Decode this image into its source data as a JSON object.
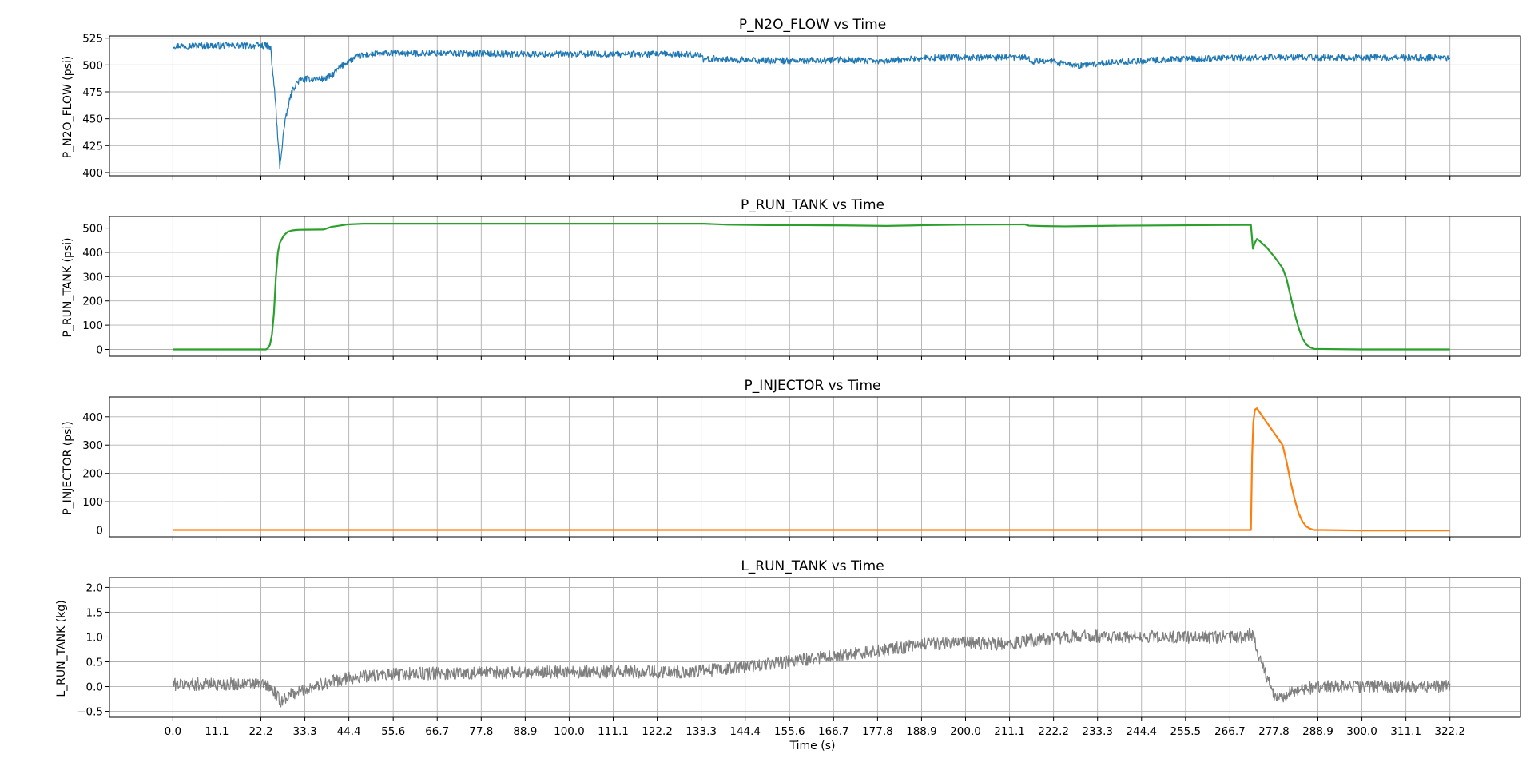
{
  "figure": {
    "xlabel": "Time (s)",
    "x_ticks": [
      "0.0",
      "11.1",
      "22.2",
      "33.3",
      "44.4",
      "55.6",
      "66.7",
      "77.8",
      "88.9",
      "100.0",
      "111.1",
      "122.2",
      "133.3",
      "144.4",
      "155.6",
      "166.7",
      "177.8",
      "188.9",
      "200.0",
      "211.1",
      "222.2",
      "233.3",
      "244.4",
      "255.5",
      "266.7",
      "277.8",
      "288.9",
      "300.0",
      "311.1",
      "322.2"
    ]
  },
  "chart_data": [
    {
      "type": "line",
      "title": "P_N2O_FLOW vs Time",
      "ylabel": "P_N2O_FLOW (psi)",
      "xlim": [
        -16,
        340
      ],
      "ylim": [
        397,
        527
      ],
      "y_ticks": [
        400,
        425,
        450,
        475,
        500,
        525
      ],
      "grid": true,
      "color": "#1f77b4",
      "noise": 3,
      "series": [
        {
          "x": [
            0,
            24,
            24.7,
            25,
            25.3,
            25.6,
            26,
            26.4,
            27,
            28,
            29,
            30,
            31,
            32,
            34,
            36,
            38,
            40,
            42,
            44,
            46,
            48,
            50,
            55,
            60,
            70,
            90,
            110,
            133,
            134,
            136,
            140,
            150,
            160,
            170,
            178,
            186,
            195,
            205,
            215,
            217,
            219,
            225,
            228,
            230,
            235,
            250,
            270,
            300,
            322.2
          ],
          "y": [
            518,
            518,
            515,
            500,
            490,
            478,
            460,
            435,
            405,
            440,
            460,
            475,
            482,
            486,
            487,
            487,
            487,
            490,
            497,
            503,
            507,
            509,
            510,
            511,
            511,
            511,
            510,
            510,
            510,
            504,
            506,
            505,
            504,
            504,
            505,
            503,
            506,
            507,
            507,
            507,
            503,
            505,
            501,
            499,
            500,
            502,
            505,
            507,
            507,
            507
          ]
        }
      ]
    },
    {
      "type": "line",
      "title": "P_RUN_TANK vs Time",
      "ylabel": "P_RUN_TANK (psi)",
      "xlim": [
        -16,
        340
      ],
      "ylim": [
        -28,
        548
      ],
      "y_ticks": [
        0,
        100,
        200,
        300,
        400,
        500
      ],
      "grid": true,
      "color": "#2ca02c",
      "noise": 0,
      "series": [
        {
          "x": [
            0,
            23.5,
            24,
            24.5,
            25,
            25.5,
            26,
            26.5,
            27,
            28,
            29,
            30,
            31,
            32,
            38,
            40,
            44,
            48,
            134,
            140,
            150,
            160,
            170,
            180,
            190,
            200,
            215,
            216,
            220,
            225,
            230,
            240,
            270,
            272,
            272.5,
            273,
            273.5,
            274,
            276,
            278,
            280,
            281,
            282,
            283,
            284,
            285,
            286,
            287,
            288,
            300,
            322.2
          ],
          "y": [
            0,
            0,
            5,
            20,
            60,
            150,
            300,
            400,
            440,
            470,
            485,
            490,
            492,
            493,
            494,
            505,
            515,
            518,
            518,
            514,
            512,
            512,
            511,
            509,
            512,
            514,
            515,
            510,
            508,
            507,
            508,
            510,
            513,
            513,
            415,
            440,
            455,
            450,
            420,
            380,
            335,
            290,
            220,
            150,
            90,
            45,
            20,
            8,
            2,
            0,
            0
          ]
        }
      ]
    },
    {
      "type": "line",
      "title": "P_INJECTOR vs Time",
      "ylabel": "P_INJECTOR (psi)",
      "xlim": [
        -16,
        340
      ],
      "ylim": [
        -24,
        470
      ],
      "y_ticks": [
        0,
        100,
        200,
        300,
        400
      ],
      "grid": true,
      "color": "#ff7f0e",
      "noise": 0,
      "series": [
        {
          "x": [
            0,
            272,
            272.3,
            272.6,
            273,
            273.5,
            274,
            276,
            278,
            280,
            281,
            282,
            283,
            284,
            285,
            286,
            287,
            288,
            290,
            300,
            322.2
          ],
          "y": [
            0,
            0,
            260,
            380,
            425,
            430,
            420,
            380,
            340,
            300,
            240,
            170,
            110,
            60,
            30,
            12,
            4,
            0,
            0,
            -2,
            -2
          ]
        }
      ]
    },
    {
      "type": "line",
      "title": "L_RUN_TANK vs Time",
      "ylabel": "L_RUN_TANK (kg)",
      "xlim": [
        -16,
        340
      ],
      "ylim": [
        -0.62,
        2.2
      ],
      "y_ticks": [
        -0.5,
        0.0,
        0.5,
        1.0,
        1.5,
        2.0
      ],
      "y_tick_labels": [
        "−0.5",
        "0.0",
        "0.5",
        "1.0",
        "1.5",
        "2.0"
      ],
      "grid": true,
      "color": "#7f7f7f",
      "noise": 0.13,
      "series": [
        {
          "x": [
            0,
            22,
            24,
            26,
            27,
            30,
            35,
            40,
            45,
            50,
            60,
            80,
            100,
            120,
            130,
            140,
            150,
            160,
            170,
            180,
            190,
            200,
            210,
            215,
            220,
            225,
            230,
            240,
            260,
            271,
            272,
            273,
            274,
            275,
            276,
            277,
            278,
            279,
            280,
            282,
            285,
            290,
            300,
            322.2
          ],
          "y": [
            0.05,
            0.05,
            0.02,
            -0.15,
            -0.3,
            -0.15,
            0.0,
            0.1,
            0.18,
            0.22,
            0.26,
            0.28,
            0.3,
            0.3,
            0.3,
            0.35,
            0.45,
            0.55,
            0.65,
            0.75,
            0.85,
            0.88,
            0.85,
            0.92,
            0.95,
            1.0,
            1.02,
            1.0,
            1.0,
            1.0,
            1.1,
            0.9,
            0.6,
            0.4,
            0.2,
            0.0,
            -0.2,
            -0.28,
            -0.2,
            -0.12,
            -0.05,
            0.0,
            0.0,
            0.0
          ]
        }
      ]
    }
  ]
}
